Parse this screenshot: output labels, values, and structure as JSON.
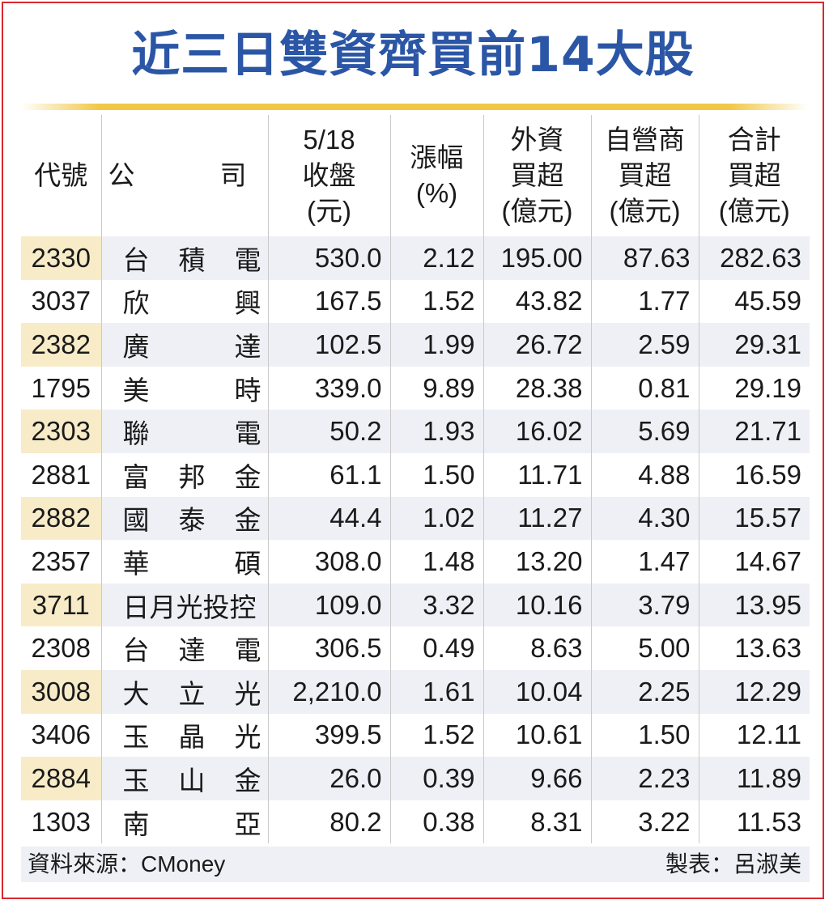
{
  "title": "近三日雙資齊買前14大股",
  "headers": {
    "code": "代號",
    "company_a": "公",
    "company_b": "司",
    "close": [
      "5/18",
      "收盤",
      "(元)"
    ],
    "change": [
      "漲幅",
      "(%)"
    ],
    "foreign": [
      "外資",
      "買超",
      "(億元)"
    ],
    "dealer": [
      "自營商",
      "買超",
      "(億元)"
    ],
    "total": [
      "合計",
      "買超",
      "(億元)"
    ]
  },
  "rows": [
    {
      "code": "2330",
      "company": [
        "台",
        "積",
        "電"
      ],
      "close": "530.0",
      "change": "2.12",
      "foreign": "195.00",
      "dealer": "87.63",
      "total": "282.63"
    },
    {
      "code": "3037",
      "company": [
        "欣",
        "興"
      ],
      "close": "167.5",
      "change": "1.52",
      "foreign": "43.82",
      "dealer": "1.77",
      "total": "45.59"
    },
    {
      "code": "2382",
      "company": [
        "廣",
        "達"
      ],
      "close": "102.5",
      "change": "1.99",
      "foreign": "26.72",
      "dealer": "2.59",
      "total": "29.31"
    },
    {
      "code": "1795",
      "company": [
        "美",
        "時"
      ],
      "close": "339.0",
      "change": "9.89",
      "foreign": "28.38",
      "dealer": "0.81",
      "total": "29.19"
    },
    {
      "code": "2303",
      "company": [
        "聯",
        "電"
      ],
      "close": "50.2",
      "change": "1.93",
      "foreign": "16.02",
      "dealer": "5.69",
      "total": "21.71"
    },
    {
      "code": "2881",
      "company": [
        "富",
        "邦",
        "金"
      ],
      "close": "61.1",
      "change": "1.50",
      "foreign": "11.71",
      "dealer": "4.88",
      "total": "16.59"
    },
    {
      "code": "2882",
      "company": [
        "國",
        "泰",
        "金"
      ],
      "close": "44.4",
      "change": "1.02",
      "foreign": "11.27",
      "dealer": "4.30",
      "total": "15.57"
    },
    {
      "code": "2357",
      "company": [
        "華",
        "碩"
      ],
      "close": "308.0",
      "change": "1.48",
      "foreign": "13.20",
      "dealer": "1.47",
      "total": "14.67"
    },
    {
      "code": "3711",
      "company": [
        "日月光投控"
      ],
      "close": "109.0",
      "change": "3.32",
      "foreign": "10.16",
      "dealer": "3.79",
      "total": "13.95"
    },
    {
      "code": "2308",
      "company": [
        "台",
        "達",
        "電"
      ],
      "close": "306.5",
      "change": "0.49",
      "foreign": "8.63",
      "dealer": "5.00",
      "total": "13.63"
    },
    {
      "code": "3008",
      "company": [
        "大",
        "立",
        "光"
      ],
      "close": "2,210.0",
      "change": "1.61",
      "foreign": "10.04",
      "dealer": "2.25",
      "total": "12.29"
    },
    {
      "code": "3406",
      "company": [
        "玉",
        "晶",
        "光"
      ],
      "close": "399.5",
      "change": "1.52",
      "foreign": "10.61",
      "dealer": "1.50",
      "total": "12.11"
    },
    {
      "code": "2884",
      "company": [
        "玉",
        "山",
        "金"
      ],
      "close": "26.0",
      "change": "0.39",
      "foreign": "9.66",
      "dealer": "2.23",
      "total": "11.89"
    },
    {
      "code": "1303",
      "company": [
        "南",
        "亞"
      ],
      "close": "80.2",
      "change": "0.38",
      "foreign": "8.31",
      "dealer": "3.22",
      "total": "11.53"
    }
  ],
  "footer": {
    "source": "資料來源：CMoney",
    "maker": "製表：呂淑美"
  },
  "colors": {
    "title": "#2b56a6",
    "border": "#d9282f",
    "rule": "#f2c744",
    "row_shade": "#eef0f6",
    "code_shade": "#f8ecc8"
  }
}
